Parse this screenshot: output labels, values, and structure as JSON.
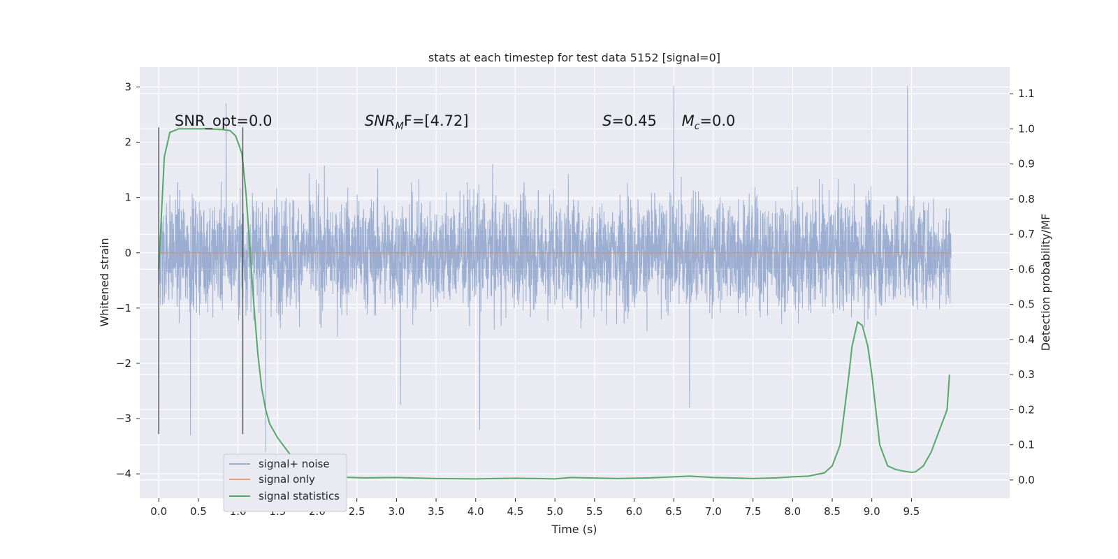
{
  "chart_data": {
    "type": "line",
    "title": "stats at each timestep for test data 5152 [signal=0]",
    "xlabel": "Time (s)",
    "ylabel_left": "Whitened strain",
    "ylabel_right": "Detection probability/MF",
    "x_range": [
      -0.24,
      10.74
    ],
    "y_left_range": [
      -4.44,
      3.36
    ],
    "y_right_range": [
      -0.052,
      1.176
    ],
    "x_ticks": [
      "0.0",
      "0.5",
      "1.0",
      "1.5",
      "2.0",
      "2.5",
      "3.0",
      "3.5",
      "4.0",
      "4.5",
      "5.0",
      "5.5",
      "6.0",
      "6.5",
      "7.0",
      "7.5",
      "8.0",
      "8.5",
      "9.0",
      "9.5"
    ],
    "x_tick_values": [
      0.0,
      0.5,
      1.0,
      1.5,
      2.0,
      2.5,
      3.0,
      3.5,
      4.0,
      4.5,
      5.0,
      5.5,
      6.0,
      6.5,
      7.0,
      7.5,
      8.0,
      8.5,
      9.0,
      9.5
    ],
    "y_left_ticks": [
      "3",
      "2",
      "1",
      "0",
      "−1",
      "−2",
      "−3",
      "−4"
    ],
    "y_left_tick_values": [
      3,
      2,
      1,
      0,
      -1,
      -2,
      -3,
      -4
    ],
    "y_right_ticks": [
      "1.1",
      "1.0",
      "0.9",
      "0.8",
      "0.7",
      "0.6",
      "0.5",
      "0.4",
      "0.3",
      "0.2",
      "0.1",
      "0.0"
    ],
    "y_right_tick_values": [
      1.1,
      1.0,
      0.9,
      0.8,
      0.7,
      0.6,
      0.5,
      0.4,
      0.3,
      0.2,
      0.1,
      0.0
    ],
    "grid": true,
    "legend_position": "lower-left",
    "series": [
      {
        "name": "signal+ noise",
        "axis": "left",
        "color": "#4c72b0",
        "kind": "noise",
        "x_start": 0.0,
        "x_end": 10.0,
        "typical_range": [
          -1.3,
          1.3
        ],
        "extremes": [
          {
            "x": 0.4,
            "y": -3.3
          },
          {
            "x": 1.35,
            "y": -3.6
          },
          {
            "x": 4.05,
            "y": -3.2
          },
          {
            "x": 6.5,
            "y": 3.02
          },
          {
            "x": 9.45,
            "y": 3.02
          },
          {
            "x": 0.85,
            "y": 2.7
          },
          {
            "x": 6.7,
            "y": -2.8
          },
          {
            "x": 3.05,
            "y": -2.75
          }
        ]
      },
      {
        "name": "signal only",
        "axis": "left",
        "color": "#dd8452",
        "x": [
          0.0,
          10.0
        ],
        "y": [
          0.0,
          0.0
        ]
      },
      {
        "name": "signal statistics",
        "axis": "right",
        "color": "#55a868",
        "x": [
          0.0,
          0.07,
          0.14,
          0.25,
          0.4,
          0.6,
          0.8,
          0.9,
          0.97,
          1.05,
          1.1,
          1.15,
          1.2,
          1.25,
          1.3,
          1.35,
          1.4,
          1.5,
          1.6,
          1.7,
          1.8,
          1.9,
          2.0,
          2.3,
          2.6,
          3.0,
          3.5,
          4.0,
          4.5,
          5.0,
          5.2,
          5.4,
          5.8,
          6.2,
          6.5,
          6.7,
          7.0,
          7.2,
          7.5,
          7.8,
          8.0,
          8.2,
          8.4,
          8.5,
          8.6,
          8.7,
          8.75,
          8.82,
          8.88,
          8.95,
          9.0,
          9.05,
          9.1,
          9.2,
          9.3,
          9.4,
          9.5,
          9.55,
          9.65,
          9.75,
          9.85,
          9.95,
          9.98
        ],
        "y": [
          0.6,
          0.92,
          0.99,
          1.0,
          1.0,
          1.0,
          0.998,
          0.995,
          0.98,
          0.93,
          0.82,
          0.66,
          0.5,
          0.36,
          0.26,
          0.2,
          0.16,
          0.12,
          0.09,
          0.06,
          0.035,
          0.02,
          0.012,
          0.008,
          0.006,
          0.007,
          0.004,
          0.003,
          0.005,
          0.003,
          0.007,
          0.006,
          0.004,
          0.006,
          0.009,
          0.011,
          0.007,
          0.006,
          0.004,
          0.006,
          0.009,
          0.011,
          0.02,
          0.04,
          0.1,
          0.28,
          0.38,
          0.45,
          0.44,
          0.38,
          0.3,
          0.2,
          0.1,
          0.04,
          0.03,
          0.025,
          0.022,
          0.023,
          0.04,
          0.08,
          0.14,
          0.2,
          0.3
        ]
      }
    ],
    "vertical_markers": [
      {
        "x": 0.0,
        "y_bottom": -3.28,
        "y_top": 2.27,
        "color": "#333333"
      },
      {
        "x": 1.06,
        "y_bottom": -3.28,
        "y_top": 2.27,
        "color": "#333333"
      }
    ],
    "annotations": [
      {
        "text": "SNR_opt=0.0",
        "x": 0.2,
        "y": 2.27,
        "math": false
      },
      {
        "text": "SNR",
        "sub": "M",
        "tail": "F=[4.72]",
        "x": 2.6,
        "y": 2.27,
        "math": true
      },
      {
        "text": "S",
        "tail": "=0.45",
        "x": 5.6,
        "y": 2.27,
        "math": true
      },
      {
        "text": "M",
        "sub": "c",
        "tail": "=0.0",
        "x": 6.6,
        "y": 2.27,
        "math": true
      }
    ]
  },
  "colors": {
    "plot_background": "#eaeaf2",
    "grid": "#ffffff",
    "noise": "#4c72b0",
    "signal": "#dd8452",
    "statistics": "#55a868"
  }
}
